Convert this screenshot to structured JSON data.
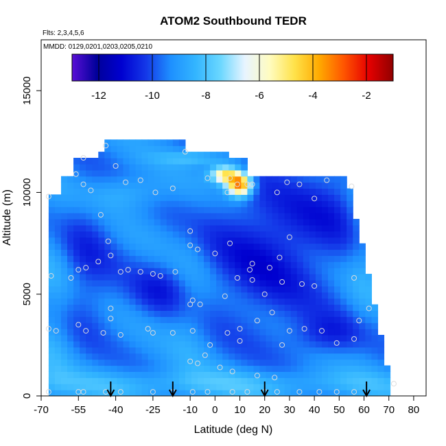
{
  "chart_data": {
    "type": "heatmap",
    "title": "ATOM2 Southbound TEDR",
    "flights_label": "Flts: 2,3,4,5,6",
    "dates_label": "MMDD: 0129,0201,0203,0205,0210",
    "xlabel": "Latitude (deg N)",
    "ylabel": "Altitude (m)",
    "xlim": [
      -70,
      85
    ],
    "ylim": [
      0,
      17500
    ],
    "x_ticks": [
      -70,
      -55,
      -40,
      -25,
      -10,
      0,
      10,
      20,
      30,
      40,
      50,
      60,
      70,
      80
    ],
    "y_ticks": [
      0,
      5000,
      10000,
      15000
    ],
    "colorbar": {
      "range": [
        -13,
        -1
      ],
      "ticks": [
        -12,
        -10,
        -8,
        -6,
        -4,
        -2
      ],
      "colors": [
        "#5a0fd6",
        "#00009a",
        "#0000d0",
        "#1438e8",
        "#1e90ff",
        "#33b5ff",
        "#6ad7ff",
        "#e8f4ff",
        "#fffcc0",
        "#ffe24a",
        "#ffaa00",
        "#ff5500",
        "#e60000",
        "#900000"
      ]
    },
    "southbound_markers_lat": [
      -42,
      -17,
      20,
      61
    ],
    "data_extent": {
      "lat_range": [
        -67,
        72
      ],
      "alt_range": [
        0,
        12500
      ]
    },
    "features": [
      {
        "lat": 10,
        "alt": 10500,
        "value": -2,
        "label": "high TEDR patch near 10N 10-11 km"
      },
      {
        "lat": 5,
        "alt": 11000,
        "value": -4
      }
    ],
    "sample_points": [
      [
        -44,
        12300
      ],
      [
        -53,
        11700
      ],
      [
        -40,
        11300
      ],
      [
        -56,
        10900
      ],
      [
        -30,
        10600
      ],
      [
        -36,
        10500
      ],
      [
        -53,
        10400
      ],
      [
        -50,
        10100
      ],
      [
        -24,
        10000
      ],
      [
        -17,
        10200
      ],
      [
        -12,
        12000
      ],
      [
        -3,
        10700
      ],
      [
        6,
        10700
      ],
      [
        9,
        10400
      ],
      [
        13,
        10400
      ],
      [
        15,
        10400
      ],
      [
        5,
        10000
      ],
      [
        25,
        10000
      ],
      [
        29,
        10500
      ],
      [
        34,
        10400
      ],
      [
        45,
        10600
      ],
      [
        55,
        10300
      ],
      [
        40,
        9700
      ],
      [
        -67,
        9800
      ],
      [
        -46,
        8900
      ],
      [
        -10,
        8100
      ],
      [
        -43,
        7600
      ],
      [
        -10,
        7400
      ],
      [
        -7,
        7200
      ],
      [
        -42,
        6900
      ],
      [
        -47,
        6600
      ],
      [
        0,
        7000
      ],
      [
        6,
        7500
      ],
      [
        30,
        7800
      ],
      [
        26,
        6800
      ],
      [
        22,
        6300
      ],
      [
        15,
        6500
      ],
      [
        -58,
        5800
      ],
      [
        -66,
        5900
      ],
      [
        -38,
        6100
      ],
      [
        -30,
        6100
      ],
      [
        -25,
        6000
      ],
      [
        -22,
        5900
      ],
      [
        -35,
        6200
      ],
      [
        -52,
        6300
      ],
      [
        -55,
        6200
      ],
      [
        -16,
        6100
      ],
      [
        9,
        5800
      ],
      [
        14,
        6200
      ],
      [
        15,
        5700
      ],
      [
        27,
        5600
      ],
      [
        35,
        5500
      ],
      [
        40,
        5400
      ],
      [
        56,
        5800
      ],
      [
        62,
        4300
      ],
      [
        -42,
        4300
      ],
      [
        -9,
        4700
      ],
      [
        -10,
        4500
      ],
      [
        -6,
        4500
      ],
      [
        4,
        4900
      ],
      [
        20,
        5000
      ],
      [
        -42,
        3800
      ],
      [
        -55,
        3500
      ],
      [
        -52,
        3200
      ],
      [
        -64,
        3200
      ],
      [
        -67,
        3300
      ],
      [
        -45,
        3100
      ],
      [
        -38,
        3000
      ],
      [
        -27,
        3300
      ],
      [
        -25,
        3100
      ],
      [
        -17,
        3100
      ],
      [
        -9,
        3200
      ],
      [
        10,
        3300
      ],
      [
        17,
        3700
      ],
      [
        23,
        4100
      ],
      [
        30,
        3200
      ],
      [
        36,
        3300
      ],
      [
        43,
        3200
      ],
      [
        49,
        2600
      ],
      [
        56,
        2800
      ],
      [
        58,
        3700
      ],
      [
        5,
        3100
      ],
      [
        10,
        2700
      ],
      [
        27,
        2500
      ],
      [
        -2,
        2500
      ],
      [
        -4,
        2000
      ],
      [
        -10,
        1700
      ],
      [
        -7,
        1600
      ],
      [
        2,
        1400
      ],
      [
        7,
        1200
      ],
      [
        17,
        1000
      ],
      [
        24,
        900
      ],
      [
        -67,
        200
      ],
      [
        -55,
        200
      ],
      [
        -53,
        200
      ],
      [
        -44,
        200
      ],
      [
        -38,
        200
      ],
      [
        -25,
        200
      ],
      [
        -17,
        200
      ],
      [
        -9,
        200
      ],
      [
        -3,
        200
      ],
      [
        7,
        200
      ],
      [
        13,
        200
      ],
      [
        20,
        200
      ],
      [
        25,
        200
      ],
      [
        34,
        200
      ],
      [
        42,
        200
      ],
      [
        49,
        200
      ],
      [
        56,
        200
      ],
      [
        72,
        600
      ]
    ]
  }
}
